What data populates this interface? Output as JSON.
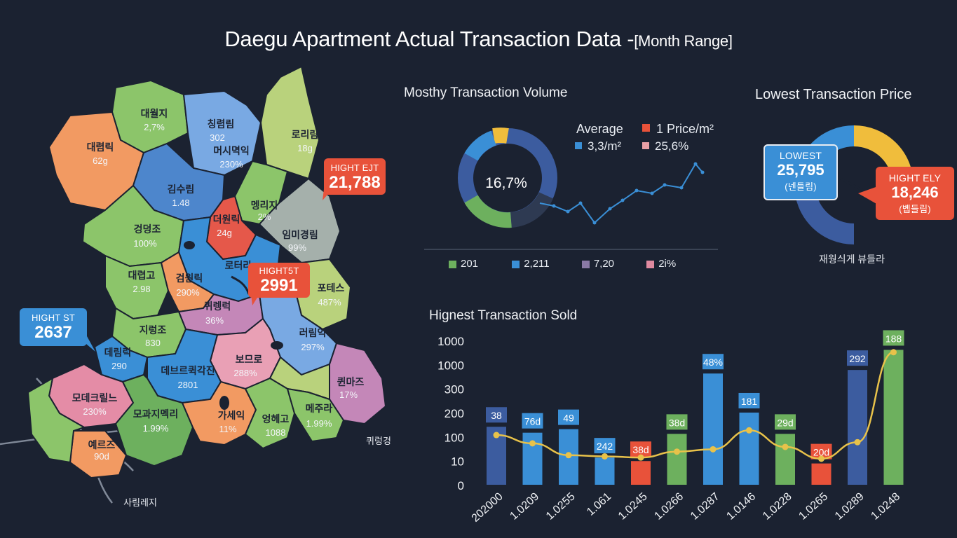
{
  "title": "Daegu Apartment Actual Transaction Data -",
  "title_range": "[Month Range]",
  "map": {
    "regions": [
      {
        "name": "대월지",
        "value": "2,7%"
      },
      {
        "name": "칭렴림",
        "value": "302"
      },
      {
        "name": "머시멱익",
        "value": "230%"
      },
      {
        "name": "로리림",
        "value": "18g"
      },
      {
        "name": "대렴릭",
        "value": "62g"
      },
      {
        "name": "김수림",
        "value": "1.48"
      },
      {
        "name": "멩리지",
        "value": "2%"
      },
      {
        "name": "더원릭",
        "value": "24g"
      },
      {
        "name": "임미경림",
        "value": "99%"
      },
      {
        "name": "겅덩조",
        "value": "100%"
      },
      {
        "name": "로터라",
        "value": ""
      },
      {
        "name": "대렵고",
        "value": "2.98"
      },
      {
        "name": "검원릭",
        "value": "290%"
      },
      {
        "name": "포테스",
        "value": "487%"
      },
      {
        "name": "퀴렝럭",
        "value": "36%"
      },
      {
        "name": "지렁조",
        "value": "830"
      },
      {
        "name": "러림익",
        "value": "297%"
      },
      {
        "name": "데림릭",
        "value": "290"
      },
      {
        "name": "보므로",
        "value": "288%"
      },
      {
        "name": "데브르퀵각진",
        "value": "2801"
      },
      {
        "name": "퀸마즈",
        "value": "17%"
      },
      {
        "name": "모데크릴느",
        "value": "230%"
      },
      {
        "name": "모과지멕리",
        "value": "1.99%"
      },
      {
        "name": "가세익",
        "value": "11%"
      },
      {
        "name": "엉헤고",
        "value": "1088"
      },
      {
        "name": "메주라",
        "value": "1.99%"
      },
      {
        "name": "예르즈",
        "value": "90d"
      }
    ],
    "bottom_label": "사림레지",
    "right_label": "퀴렁겅"
  },
  "callouts": {
    "left": {
      "heading": "HIGHT ST",
      "value": "2637"
    },
    "center": {
      "heading": "HIGHT5T",
      "value": "2991"
    },
    "right": {
      "heading": "HIGHT EJT",
      "value": "21,788"
    }
  },
  "monthly": {
    "title": "Mosthy Transaction Volume",
    "center_label": "16,7%",
    "average_label": "Average",
    "average_value": "3,3/m²",
    "price_label": "1 Price/m²",
    "price_value": "25,6%",
    "legend": [
      {
        "label": "201",
        "color": "#6db05e"
      },
      {
        "label": "2,211",
        "color": "#3a8fd6"
      },
      {
        "label": "7,20",
        "color": "#8a7aa6"
      },
      {
        "label": "2i%",
        "color": "#e08aa0"
      }
    ],
    "colors": {
      "blue": "#3a8fd6",
      "orange": "#e8523a",
      "pink": "#e9a0a6",
      "yellow": "#f0bd3c",
      "green": "#6db05e",
      "navy": "#3c5c9f"
    }
  },
  "lowest": {
    "title": "Lowest Transaction Price",
    "low_heading": "LOWEST",
    "low_value": "25,795",
    "low_sub": "(넨들림)",
    "high_heading": "HIGHT ELY",
    "high_value": "18,246",
    "high_sub": "(볩들림)",
    "caption": "재웡싀게 뷰들라"
  },
  "chart_data": {
    "type": "bar",
    "title": "Hignest Transaction Sold",
    "categories": [
      "202000",
      "1.0209",
      "1.0255",
      "1.061",
      "1.0245",
      "1.0266",
      "1.0287",
      "1.0146",
      "1.0228",
      "1.0265",
      "1.0289",
      "1.0248"
    ],
    "y_tick_labels": [
      "1000",
      "1000",
      "300",
      "200",
      "100",
      "10",
      "0"
    ],
    "bar_labels": [
      "38",
      "76d",
      "49",
      "242",
      "38d",
      "38d",
      "48%",
      "181",
      "29d",
      "20d",
      "292",
      "188"
    ],
    "bar_colors": [
      "#3c5c9f",
      "#3a8fd6",
      "#3a8fd6",
      "#3a8fd6",
      "#e8523a",
      "#6db05e",
      "#3a8fd6",
      "#3a8fd6",
      "#6db05e",
      "#e8523a",
      "#3c5c9f",
      "#6db05e"
    ],
    "bar_fraction": [
      0.49,
      0.44,
      0.47,
      0.23,
      0.2,
      0.43,
      0.94,
      0.61,
      0.43,
      0.18,
      0.97,
      1.14
    ],
    "line_fraction": [
      0.42,
      0.35,
      0.25,
      0.24,
      0.23,
      0.28,
      0.3,
      0.46,
      0.32,
      0.22,
      0.36,
      1.12
    ],
    "line_color": "#e8c24a"
  }
}
